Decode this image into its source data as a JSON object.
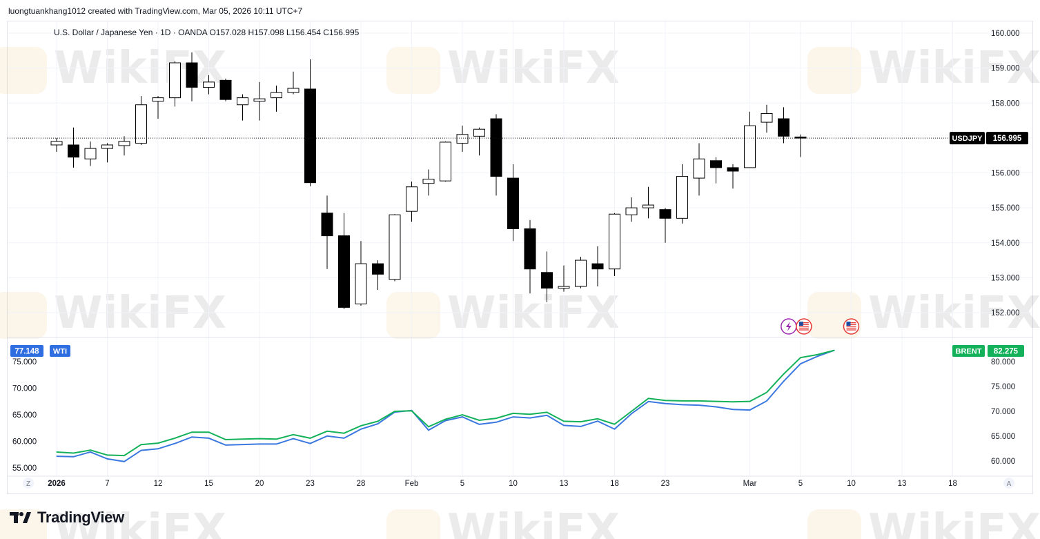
{
  "header": {
    "created_by": "luongtuankhang1012 created with TradingView.com, Mar 05, 2026 10:11 UTC+7"
  },
  "colors": {
    "up_fill": "#ffffff",
    "down_fill": "#000000",
    "candle_border": "#000000",
    "wti_line": "#3a78e0",
    "brent_line": "#12b15a",
    "wti_badge": "#2f6ee0",
    "brent_badge": "#12b15a",
    "grid": "#f0f3fa",
    "axis_text": "#131722"
  },
  "chart_data": [
    {
      "type": "candlestick",
      "title": "U.S. Dollar / Japanese Yen · 1D · OANDA",
      "ohlc_label": "O157.028  H157.098  L156.454  C156.995",
      "symbol_label": "USDJPY",
      "last_price_label": "156.995",
      "last_price": 156.995,
      "ylim": [
        151.3,
        160.3
      ],
      "y_ticks": [
        "160.000",
        "159.000",
        "158.000",
        "157.000",
        "156.000",
        "155.000",
        "154.000",
        "153.000",
        "152.000"
      ],
      "y_tick_values": [
        160,
        159,
        158,
        157,
        156,
        155,
        154,
        153,
        152
      ],
      "candles": [
        {
          "t": 0,
          "o": 156.8,
          "h": 157.0,
          "l": 156.6,
          "c": 156.9
        },
        {
          "t": 1,
          "o": 156.8,
          "h": 157.3,
          "l": 156.15,
          "c": 156.45
        },
        {
          "t": 2,
          "o": 156.4,
          "h": 156.9,
          "l": 156.2,
          "c": 156.7
        },
        {
          "t": 3,
          "o": 156.7,
          "h": 156.85,
          "l": 156.3,
          "c": 156.8
        },
        {
          "t": 4,
          "o": 156.78,
          "h": 157.05,
          "l": 156.5,
          "c": 156.9
        },
        {
          "t": 5,
          "o": 156.85,
          "h": 158.2,
          "l": 156.8,
          "c": 157.95
        },
        {
          "t": 6,
          "o": 158.05,
          "h": 158.2,
          "l": 157.55,
          "c": 158.15
        },
        {
          "t": 7,
          "o": 158.15,
          "h": 159.2,
          "l": 157.9,
          "c": 159.15
        },
        {
          "t": 8,
          "o": 159.15,
          "h": 159.45,
          "l": 158.05,
          "c": 158.45
        },
        {
          "t": 9,
          "o": 158.45,
          "h": 158.8,
          "l": 158.25,
          "c": 158.6
        },
        {
          "t": 10,
          "o": 158.65,
          "h": 158.7,
          "l": 158.05,
          "c": 158.1
        },
        {
          "t": 11,
          "o": 157.95,
          "h": 158.25,
          "l": 157.5,
          "c": 158.15
        },
        {
          "t": 12,
          "o": 158.05,
          "h": 158.6,
          "l": 157.5,
          "c": 158.12
        },
        {
          "t": 13,
          "o": 158.15,
          "h": 158.5,
          "l": 157.75,
          "c": 158.3
        },
        {
          "t": 14,
          "o": 158.3,
          "h": 158.9,
          "l": 158.25,
          "c": 158.42
        },
        {
          "t": 15,
          "o": 158.4,
          "h": 159.25,
          "l": 155.62,
          "c": 155.72
        },
        {
          "t": 16,
          "o": 154.85,
          "h": 155.35,
          "l": 153.25,
          "c": 154.2
        },
        {
          "t": 17,
          "o": 154.2,
          "h": 154.85,
          "l": 152.1,
          "c": 152.15
        },
        {
          "t": 18,
          "o": 152.25,
          "h": 154.05,
          "l": 152.2,
          "c": 153.4
        },
        {
          "t": 19,
          "o": 153.4,
          "h": 153.5,
          "l": 152.65,
          "c": 153.1
        },
        {
          "t": 20,
          "o": 152.95,
          "h": 154.82,
          "l": 152.9,
          "c": 154.8
        },
        {
          "t": 21,
          "o": 154.9,
          "h": 155.75,
          "l": 154.6,
          "c": 155.6
        },
        {
          "t": 22,
          "o": 155.7,
          "h": 156.1,
          "l": 155.35,
          "c": 155.82
        },
        {
          "t": 23,
          "o": 155.77,
          "h": 156.9,
          "l": 155.75,
          "c": 156.88
        },
        {
          "t": 24,
          "o": 156.85,
          "h": 157.35,
          "l": 156.6,
          "c": 157.1
        },
        {
          "t": 25,
          "o": 157.05,
          "h": 157.3,
          "l": 156.5,
          "c": 157.25
        },
        {
          "t": 26,
          "o": 157.55,
          "h": 157.68,
          "l": 155.35,
          "c": 155.9
        },
        {
          "t": 27,
          "o": 155.85,
          "h": 156.25,
          "l": 154.05,
          "c": 154.4
        },
        {
          "t": 28,
          "o": 154.4,
          "h": 154.65,
          "l": 152.55,
          "c": 153.25
        },
        {
          "t": 29,
          "o": 153.15,
          "h": 153.75,
          "l": 152.3,
          "c": 152.7
        },
        {
          "t": 30,
          "o": 152.7,
          "h": 153.35,
          "l": 152.6,
          "c": 152.75
        },
        {
          "t": 31,
          "o": 152.75,
          "h": 153.6,
          "l": 152.7,
          "c": 153.5
        },
        {
          "t": 32,
          "o": 153.4,
          "h": 153.9,
          "l": 152.75,
          "c": 153.25
        },
        {
          "t": 33,
          "o": 153.25,
          "h": 154.85,
          "l": 153.05,
          "c": 154.82
        },
        {
          "t": 34,
          "o": 154.8,
          "h": 155.3,
          "l": 154.6,
          "c": 155.0
        },
        {
          "t": 35,
          "o": 155.0,
          "h": 155.6,
          "l": 154.7,
          "c": 155.08
        },
        {
          "t": 36,
          "o": 154.95,
          "h": 155.0,
          "l": 154.0,
          "c": 154.7
        },
        {
          "t": 37,
          "o": 154.7,
          "h": 156.25,
          "l": 154.55,
          "c": 155.9
        },
        {
          "t": 38,
          "o": 155.85,
          "h": 156.85,
          "l": 155.35,
          "c": 156.4
        },
        {
          "t": 39,
          "o": 156.35,
          "h": 156.45,
          "l": 155.7,
          "c": 156.15
        },
        {
          "t": 40,
          "o": 156.15,
          "h": 156.25,
          "l": 155.55,
          "c": 156.05
        },
        {
          "t": 41,
          "o": 156.15,
          "h": 157.75,
          "l": 156.15,
          "c": 157.35
        },
        {
          "t": 42,
          "o": 157.45,
          "h": 157.95,
          "l": 157.15,
          "c": 157.7
        },
        {
          "t": 43,
          "o": 157.55,
          "h": 157.88,
          "l": 156.85,
          "c": 157.05
        },
        {
          "t": 44,
          "o": 157.028,
          "h": 157.098,
          "l": 156.454,
          "c": 156.995
        }
      ]
    },
    {
      "type": "line",
      "left_axis_label": "WTI",
      "right_axis_label": "BRENT",
      "wti_last_label": "77.148",
      "brent_last_label": "82.275",
      "left_ylim": [
        53.5,
        78.5
      ],
      "right_ylim": [
        58.5,
        83.5
      ],
      "left_ticks": [
        "75.000",
        "70.000",
        "65.000",
        "60.000",
        "55.000"
      ],
      "left_tick_values": [
        75,
        70,
        65,
        60,
        55
      ],
      "right_ticks": [
        "80.000",
        "75.000",
        "70.000",
        "65.000",
        "60.000"
      ],
      "right_tick_values": [
        80,
        75,
        70,
        65,
        60
      ],
      "series": [
        {
          "name": "WTI",
          "axis": "left",
          "values": [
            57.2,
            57.1,
            58.0,
            56.7,
            56.2,
            58.3,
            58.6,
            59.6,
            60.8,
            60.6,
            59.3,
            59.4,
            59.5,
            59.5,
            60.5,
            59.6,
            61.0,
            60.6,
            62.3,
            63.3,
            65.5,
            65.8,
            62.1,
            63.9,
            64.6,
            63.2,
            63.6,
            64.6,
            64.4,
            64.9,
            63.0,
            62.8,
            63.8,
            62.3,
            65.2,
            67.5,
            67.1,
            66.9,
            66.8,
            66.5,
            66.0,
            65.9,
            67.6,
            71.3,
            74.6,
            76.0,
            77.148
          ]
        },
        {
          "name": "BRENT",
          "axis": "right",
          "values": [
            61.8,
            61.6,
            62.2,
            61.2,
            61.1,
            63.3,
            63.6,
            64.6,
            65.8,
            65.8,
            64.3,
            64.4,
            64.5,
            64.4,
            65.3,
            64.6,
            66.0,
            65.6,
            67.1,
            68.0,
            70.0,
            70.1,
            66.9,
            68.4,
            69.3,
            68.2,
            68.6,
            69.6,
            69.4,
            69.8,
            68.0,
            67.9,
            68.5,
            67.4,
            70.0,
            72.6,
            72.2,
            72.1,
            72.1,
            72.0,
            71.9,
            72.0,
            73.8,
            77.5,
            80.8,
            81.4,
            82.275
          ]
        }
      ]
    }
  ],
  "x_axis": {
    "ticks": [
      {
        "label": "2026",
        "t": 0
      },
      {
        "label": "7",
        "t": 3
      },
      {
        "label": "12",
        "t": 6
      },
      {
        "label": "15",
        "t": 9
      },
      {
        "label": "20",
        "t": 12
      },
      {
        "label": "23",
        "t": 15
      },
      {
        "label": "28",
        "t": 18
      },
      {
        "label": "Feb",
        "t": 21
      },
      {
        "label": "5",
        "t": 24
      },
      {
        "label": "10",
        "t": 27
      },
      {
        "label": "13",
        "t": 30
      },
      {
        "label": "18",
        "t": 33
      },
      {
        "label": "23",
        "t": 36
      },
      {
        "label": "Mar",
        "t": 41
      },
      {
        "label": "5",
        "t": 44
      },
      {
        "label": "10",
        "t": 47
      },
      {
        "label": "13",
        "t": 50
      },
      {
        "label": "18",
        "t": 53
      }
    ],
    "left_button": "Z",
    "right_button": "A"
  },
  "events": [
    {
      "icon": "lightning-icon",
      "t": 43.3
    },
    {
      "icon": "us-flag-icon",
      "t": 44.2
    },
    {
      "icon": "us-flag-icon",
      "t": 47
    }
  ],
  "watermark": {
    "text": "WikiFX"
  },
  "footer": {
    "brand": "TradingView"
  }
}
